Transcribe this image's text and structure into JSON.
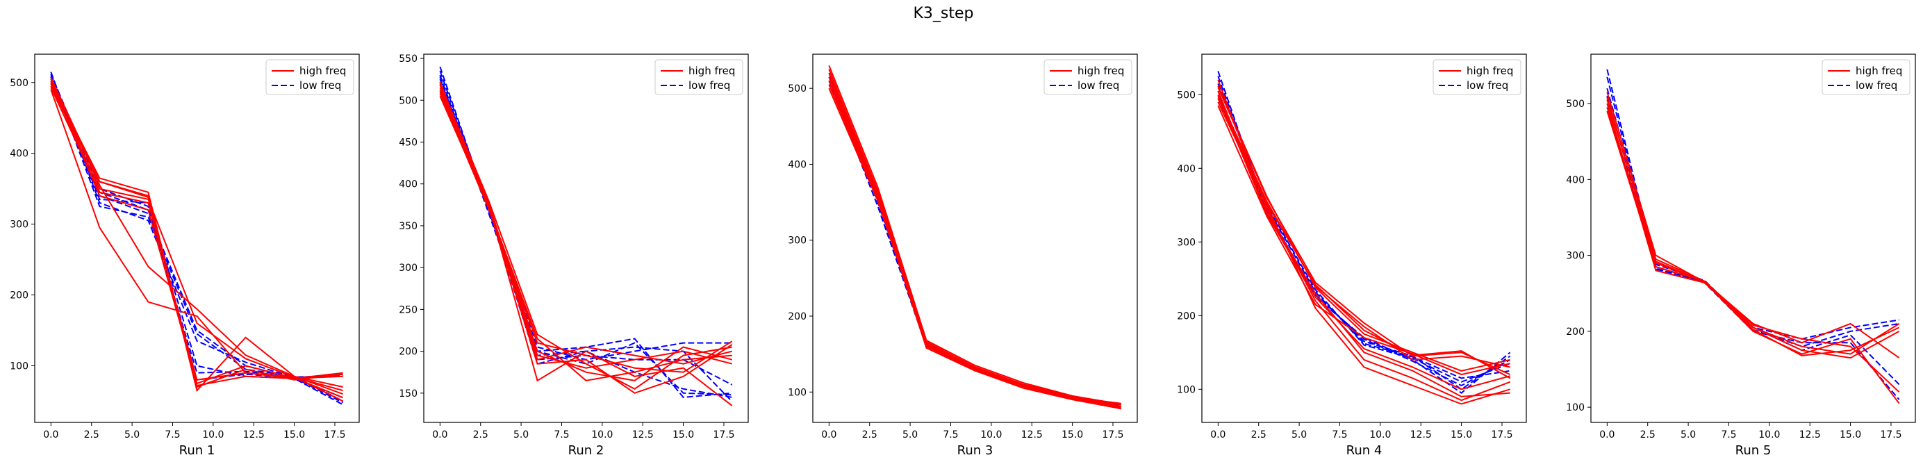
{
  "figure": {
    "title": "K3_step"
  },
  "colors": {
    "high": "#ff0000",
    "low": "#0000ff"
  },
  "chart_data": [
    {
      "type": "line",
      "xlabel": "Run 1",
      "xlim": [
        -1.0,
        19.0
      ],
      "ylim": [
        20,
        540
      ],
      "xticks": [
        0.0,
        2.5,
        5.0,
        7.5,
        10.0,
        12.5,
        15.0,
        17.5
      ],
      "xtick_labels": [
        "0.0",
        "2.5",
        "5.0",
        "7.5",
        "10.0",
        "12.5",
        "15.0",
        "17.5"
      ],
      "yticks": [
        100,
        200,
        300,
        400,
        500
      ],
      "ytick_labels": [
        "100",
        "200",
        "300",
        "400",
        "500"
      ],
      "legend": {
        "placement": "top-right",
        "entries": [
          "high freq",
          "low freq"
        ]
      },
      "x": [
        0,
        3,
        6,
        9,
        12,
        15,
        18
      ],
      "series": [
        {
          "group": "low",
          "values": [
            515,
            330,
            305,
            135,
            105,
            83,
            48
          ]
        },
        {
          "group": "low",
          "values": [
            510,
            325,
            310,
            145,
            95,
            85,
            50
          ]
        },
        {
          "group": "low",
          "values": [
            505,
            340,
            315,
            150,
            100,
            82,
            55
          ]
        },
        {
          "group": "low",
          "values": [
            500,
            345,
            320,
            90,
            92,
            84,
            86
          ]
        },
        {
          "group": "low",
          "values": [
            512,
            350,
            325,
            80,
            88,
            83,
            88
          ]
        },
        {
          "group": "low",
          "values": [
            508,
            335,
            330,
            100,
            85,
            82,
            45
          ]
        },
        {
          "group": "high",
          "values": [
            500,
            365,
            345,
            65,
            140,
            85,
            60
          ]
        },
        {
          "group": "high",
          "values": [
            495,
            360,
            340,
            70,
            95,
            80,
            88
          ]
        },
        {
          "group": "high",
          "values": [
            490,
            295,
            190,
            170,
            90,
            82,
            85
          ]
        },
        {
          "group": "high",
          "values": [
            505,
            355,
            240,
            180,
            115,
            85,
            70
          ]
        },
        {
          "group": "high",
          "values": [
            498,
            350,
            335,
            160,
            110,
            84,
            65
          ]
        },
        {
          "group": "high",
          "values": [
            502,
            340,
            320,
            75,
            100,
            83,
            55
          ]
        },
        {
          "group": "high",
          "values": [
            507,
            360,
            338,
            72,
            85,
            82,
            90
          ]
        },
        {
          "group": "high",
          "values": [
            493,
            345,
            330,
            80,
            90,
            84,
            50
          ]
        }
      ]
    },
    {
      "type": "line",
      "xlabel": "Run 2",
      "xlim": [
        -1.0,
        19.0
      ],
      "ylim": [
        115,
        555
      ],
      "xticks": [
        0.0,
        2.5,
        5.0,
        7.5,
        10.0,
        12.5,
        15.0,
        17.5
      ],
      "xtick_labels": [
        "0.0",
        "2.5",
        "5.0",
        "7.5",
        "10.0",
        "12.5",
        "15.0",
        "17.5"
      ],
      "yticks": [
        150,
        200,
        250,
        300,
        350,
        400,
        450,
        500,
        550
      ],
      "ytick_labels": [
        "150",
        "200",
        "250",
        "300",
        "350",
        "400",
        "450",
        "500",
        "550"
      ],
      "legend": {
        "placement": "top-right",
        "entries": [
          "high freq",
          "low freq"
        ]
      },
      "x": [
        0,
        3,
        6,
        9,
        12,
        15,
        18
      ],
      "series": [
        {
          "group": "low",
          "values": [
            540,
            370,
            200,
            205,
            215,
            145,
            150
          ]
        },
        {
          "group": "low",
          "values": [
            535,
            372,
            195,
            200,
            175,
            155,
            145
          ]
        },
        {
          "group": "low",
          "values": [
            530,
            368,
            205,
            190,
            200,
            210,
            210
          ]
        },
        {
          "group": "low",
          "values": [
            525,
            375,
            190,
            195,
            190,
            190,
            160
          ]
        },
        {
          "group": "low",
          "values": [
            520,
            370,
            185,
            200,
            205,
            200,
            140
          ]
        },
        {
          "group": "low",
          "values": [
            528,
            365,
            200,
            185,
            210,
            150,
            148
          ]
        },
        {
          "group": "high",
          "values": [
            520,
            380,
            220,
            185,
            155,
            195,
            205
          ]
        },
        {
          "group": "high",
          "values": [
            515,
            375,
            165,
            200,
            170,
            180,
            135
          ]
        },
        {
          "group": "high",
          "values": [
            510,
            372,
            215,
            165,
            175,
            190,
            195
          ]
        },
        {
          "group": "high",
          "values": [
            508,
            370,
            210,
            195,
            180,
            175,
            212
          ]
        },
        {
          "group": "high",
          "values": [
            512,
            378,
            190,
            205,
            195,
            185,
            200
          ]
        },
        {
          "group": "high",
          "values": [
            518,
            376,
            200,
            175,
            165,
            205,
            190
          ]
        },
        {
          "group": "high",
          "values": [
            505,
            373,
            185,
            190,
            150,
            170,
            208
          ]
        },
        {
          "group": "high",
          "values": [
            522,
            374,
            195,
            180,
            190,
            200,
            185
          ]
        }
      ]
    },
    {
      "type": "line",
      "xlabel": "Run 3",
      "xlim": [
        -1.0,
        19.0
      ],
      "ylim": [
        60,
        545
      ],
      "xticks": [
        0.0,
        2.5,
        5.0,
        7.5,
        10.0,
        12.5,
        15.0,
        17.5
      ],
      "xtick_labels": [
        "0.0",
        "2.5",
        "5.0",
        "7.5",
        "10.0",
        "12.5",
        "15.0",
        "17.5"
      ],
      "yticks": [
        100,
        200,
        300,
        400,
        500
      ],
      "ytick_labels": [
        "100",
        "200",
        "300",
        "400",
        "500"
      ],
      "legend": {
        "placement": "top-right",
        "entries": [
          "high freq",
          "low freq"
        ]
      },
      "x": [
        0,
        3,
        6,
        9,
        12,
        15,
        18
      ],
      "series": [
        {
          "group": "low",
          "values": [
            520,
            350,
            162,
            130,
            108,
            93,
            80
          ]
        },
        {
          "group": "low",
          "values": [
            515,
            355,
            165,
            128,
            106,
            92,
            78
          ]
        },
        {
          "group": "low",
          "values": [
            510,
            345,
            160,
            132,
            110,
            94,
            82
          ]
        },
        {
          "group": "high",
          "values": [
            530,
            370,
            168,
            135,
            112,
            95,
            84
          ]
        },
        {
          "group": "high",
          "values": [
            525,
            365,
            166,
            133,
            110,
            94,
            83
          ]
        },
        {
          "group": "high",
          "values": [
            520,
            362,
            164,
            131,
            108,
            93,
            81
          ]
        },
        {
          "group": "high",
          "values": [
            515,
            360,
            162,
            130,
            107,
            92,
            80
          ]
        },
        {
          "group": "high",
          "values": [
            510,
            358,
            160,
            129,
            106,
            91,
            79
          ]
        },
        {
          "group": "high",
          "values": [
            505,
            355,
            158,
            128,
            105,
            90,
            78
          ]
        },
        {
          "group": "high",
          "values": [
            500,
            352,
            162,
            132,
            109,
            93,
            85
          ]
        }
      ]
    },
    {
      "type": "line",
      "xlabel": "Run 4",
      "xlim": [
        -1.0,
        19.0
      ],
      "ylim": [
        55,
        555
      ],
      "xticks": [
        0.0,
        2.5,
        5.0,
        7.5,
        10.0,
        12.5,
        15.0,
        17.5
      ],
      "xtick_labels": [
        "0.0",
        "2.5",
        "5.0",
        "7.5",
        "10.0",
        "12.5",
        "15.0",
        "17.5"
      ],
      "yticks": [
        100,
        200,
        300,
        400,
        500
      ],
      "ytick_labels": [
        "100",
        "200",
        "300",
        "400",
        "500"
      ],
      "legend": {
        "placement": "top-right",
        "entries": [
          "high freq",
          "low freq"
        ]
      },
      "x": [
        0,
        3,
        6,
        9,
        12,
        15,
        18
      ],
      "series": [
        {
          "group": "low",
          "values": [
            532,
            340,
            230,
            165,
            145,
            100,
            145
          ]
        },
        {
          "group": "low",
          "values": [
            525,
            345,
            225,
            170,
            140,
            95,
            150
          ]
        },
        {
          "group": "low",
          "values": [
            515,
            350,
            235,
            160,
            142,
            110,
            135
          ]
        },
        {
          "group": "low",
          "values": [
            505,
            342,
            228,
            168,
            138,
            105,
            140
          ]
        },
        {
          "group": "low",
          "values": [
            495,
            348,
            232,
            162,
            144,
            115,
            125
          ]
        },
        {
          "group": "high",
          "values": [
            510,
            360,
            245,
            190,
            145,
            150,
            120
          ]
        },
        {
          "group": "high",
          "values": [
            500,
            355,
            240,
            185,
            140,
            145,
            130
          ]
        },
        {
          "group": "high",
          "values": [
            490,
            350,
            210,
            130,
            105,
            80,
            100
          ]
        },
        {
          "group": "high",
          "values": [
            520,
            345,
            220,
            140,
            115,
            85,
            110
          ]
        },
        {
          "group": "high",
          "values": [
            505,
            340,
            230,
            150,
            125,
            90,
            95
          ]
        },
        {
          "group": "high",
          "values": [
            498,
            338,
            225,
            155,
            130,
            100,
            118
          ]
        },
        {
          "group": "high",
          "values": [
            485,
            335,
            215,
            170,
            148,
            120,
            135
          ]
        },
        {
          "group": "high",
          "values": [
            512,
            362,
            238,
            175,
            150,
            125,
            140
          ]
        },
        {
          "group": "high",
          "values": [
            495,
            352,
            242,
            180,
            146,
            152,
            115
          ]
        }
      ]
    },
    {
      "type": "line",
      "xlabel": "Run 5",
      "xlim": [
        -1.0,
        19.0
      ],
      "ylim": [
        80,
        565
      ],
      "xticks": [
        0.0,
        2.5,
        5.0,
        7.5,
        10.0,
        12.5,
        15.0,
        17.5
      ],
      "xtick_labels": [
        "0.0",
        "2.5",
        "5.0",
        "7.5",
        "10.0",
        "12.5",
        "15.0",
        "17.5"
      ],
      "yticks": [
        100,
        200,
        300,
        400,
        500
      ],
      "ytick_labels": [
        "100",
        "200",
        "300",
        "400",
        "500"
      ],
      "legend": {
        "placement": "top-right",
        "entries": [
          "high freq",
          "low freq"
        ]
      },
      "x": [
        0,
        3,
        6,
        9,
        12,
        15,
        18
      ],
      "series": [
        {
          "group": "low",
          "values": [
            545,
            285,
            265,
            205,
            190,
            205,
            215
          ]
        },
        {
          "group": "low",
          "values": [
            535,
            282,
            265,
            202,
            180,
            200,
            210
          ]
        },
        {
          "group": "low",
          "values": [
            520,
            288,
            267,
            205,
            175,
            195,
            130
          ]
        },
        {
          "group": "low",
          "values": [
            510,
            283,
            264,
            200,
            185,
            185,
            110
          ]
        },
        {
          "group": "high",
          "values": [
            515,
            300,
            265,
            210,
            185,
            210,
            165
          ]
        },
        {
          "group": "high",
          "values": [
            505,
            295,
            266,
            205,
            180,
            170,
            210
          ]
        },
        {
          "group": "high",
          "values": [
            495,
            290,
            265,
            200,
            170,
            190,
            105
          ]
        },
        {
          "group": "high",
          "values": [
            500,
            280,
            264,
            205,
            175,
            165,
            200
          ]
        },
        {
          "group": "high",
          "values": [
            490,
            285,
            266,
            208,
            190,
            180,
            120
          ]
        },
        {
          "group": "high",
          "values": [
            508,
            292,
            265,
            202,
            168,
            175,
            205
          ]
        }
      ]
    }
  ]
}
